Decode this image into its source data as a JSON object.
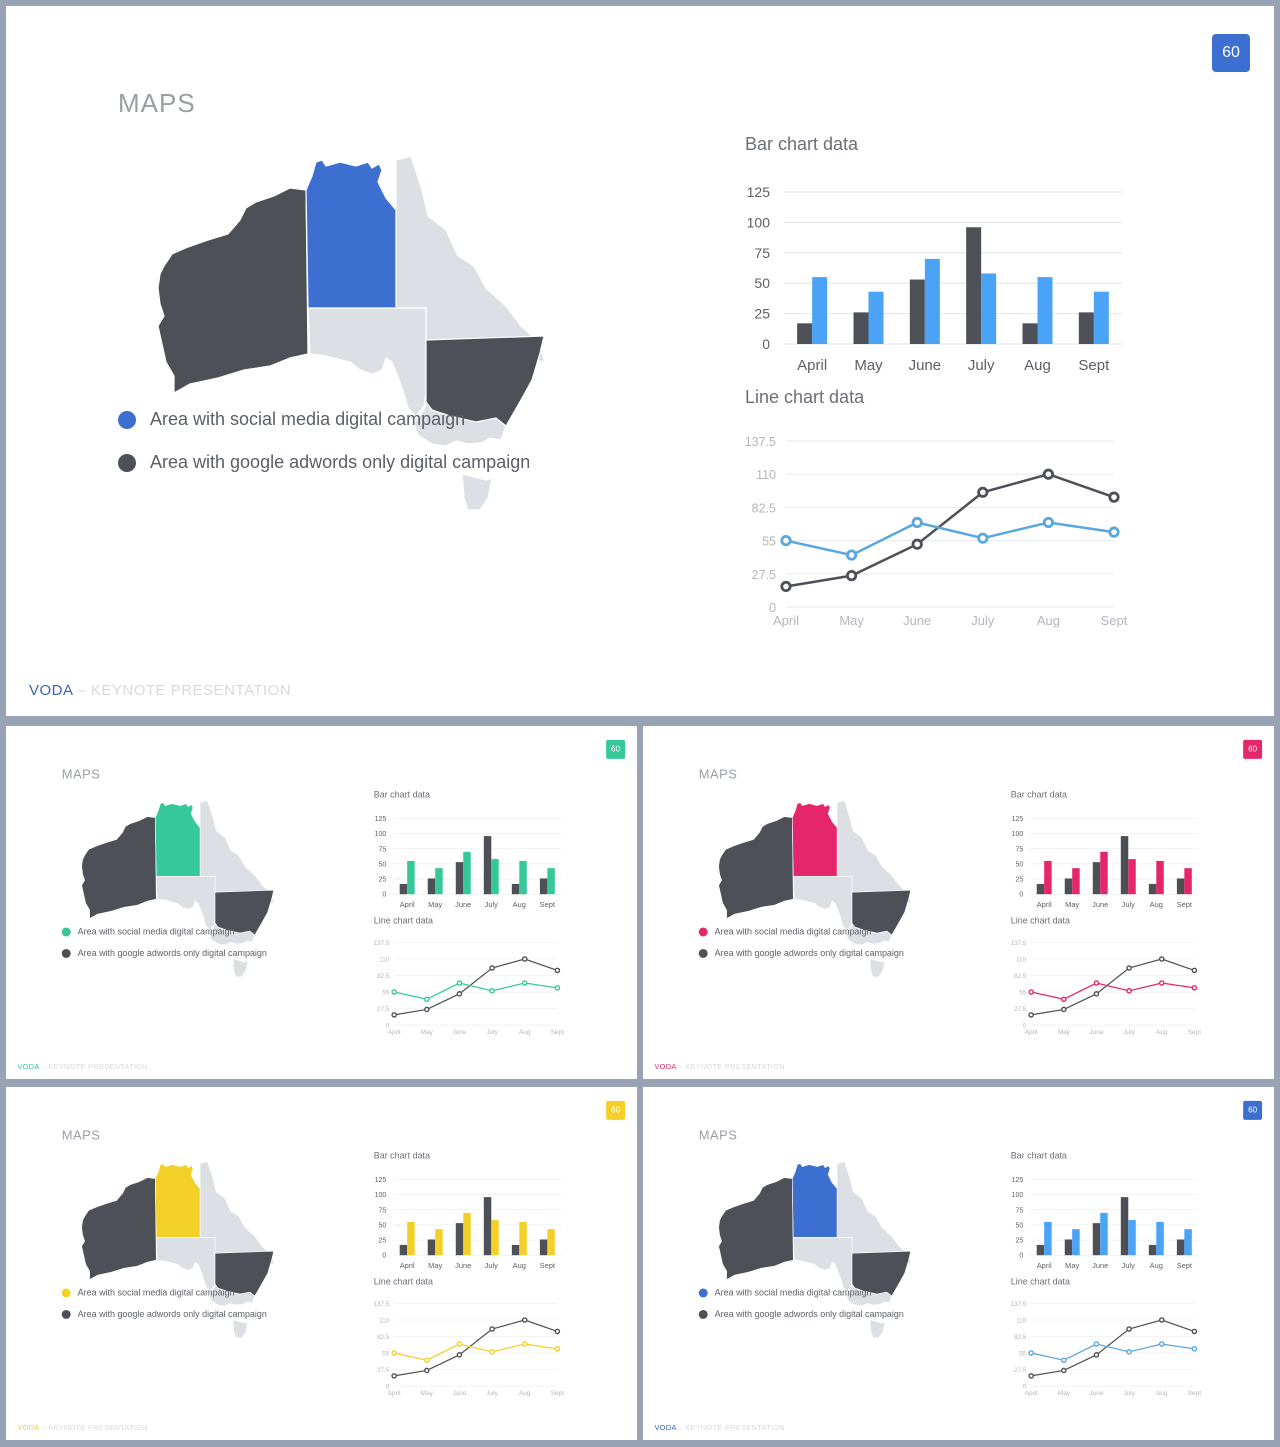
{
  "slide": {
    "title": "MAPS",
    "page_number": "60",
    "legend": {
      "social": "Area with social media digital campaign",
      "google": "Area with google adwords only digital campaign"
    },
    "footer": {
      "brand": "VODA",
      "dash": " – ",
      "subtitle": "KEYNOTE PRESENTATION"
    }
  },
  "map_regions": {
    "western_australia": "google-adwords",
    "northern_territory": "social-media",
    "new_south_wales": "google-adwords",
    "queensland": "none",
    "south_australia": "none",
    "victoria": "none",
    "tasmania": "none"
  },
  "variants": [
    {
      "accent": "#3d6fd1"
    },
    {
      "accent": "#35c99a"
    },
    {
      "accent": "#e5266a"
    },
    {
      "accent": "#f3d028"
    },
    {
      "accent": "#3d6fd1"
    }
  ],
  "colors": {
    "dark": "#4d5056",
    "light_region": "#dcdfe4",
    "line_dark": "#4d5056",
    "line_blue": "#5aa7e0",
    "bar_blue": "#4aa3f5"
  },
  "chart_data": [
    {
      "type": "bar",
      "title": "Bar chart data",
      "categories": [
        "April",
        "May",
        "June",
        "July",
        "Aug",
        "Sept"
      ],
      "series": [
        {
          "values": [
            17,
            26,
            53,
            96,
            17,
            26
          ]
        },
        {
          "values": [
            55,
            43,
            70,
            58,
            55,
            43
          ]
        }
      ],
      "ylim": [
        0,
        125
      ],
      "yticks": [
        "0",
        "25",
        "50",
        "75",
        "100",
        "125"
      ],
      "grid": true
    },
    {
      "type": "line",
      "title": "Line chart data",
      "categories": [
        "April",
        "May",
        "June",
        "July",
        "Aug",
        "Sept"
      ],
      "series": [
        {
          "values": [
            17,
            26,
            52,
            95,
            110,
            91
          ]
        },
        {
          "values": [
            55,
            43,
            70,
            57,
            70,
            62
          ]
        }
      ],
      "ylim": [
        0,
        137.5
      ],
      "yticks": [
        "0",
        "27.5",
        "55",
        "82.5",
        "110",
        "137.5"
      ],
      "grid": true
    }
  ]
}
